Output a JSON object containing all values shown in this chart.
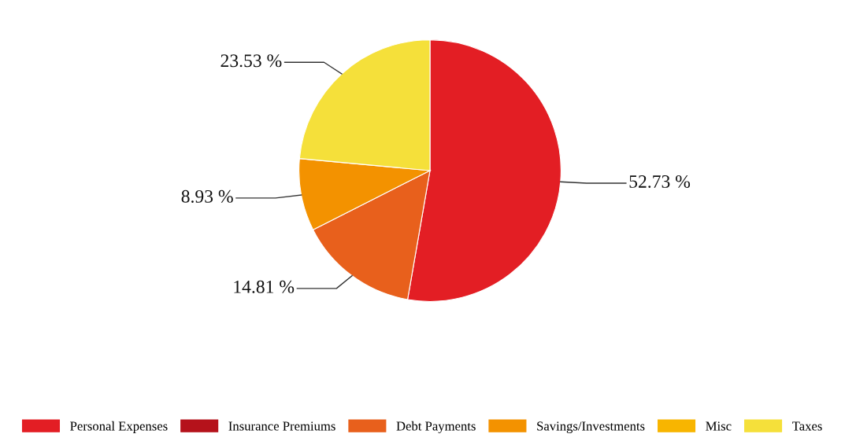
{
  "chart_data": {
    "type": "pie",
    "categories": [
      "Personal Expenses",
      "Insurance Premiums",
      "Debt Payments",
      "Savings/Investments",
      "Misc",
      "Taxes"
    ],
    "values": [
      52.73,
      0,
      14.81,
      8.93,
      0,
      23.53
    ],
    "colors": [
      "#e31e24",
      "#b5121b",
      "#e8601c",
      "#f39200",
      "#f8b500",
      "#f5e03a"
    ],
    "value_labels": [
      "52.73 %",
      null,
      "14.81 %",
      "8.93 %",
      null,
      "23.53 %"
    ],
    "legend": "bottom"
  }
}
